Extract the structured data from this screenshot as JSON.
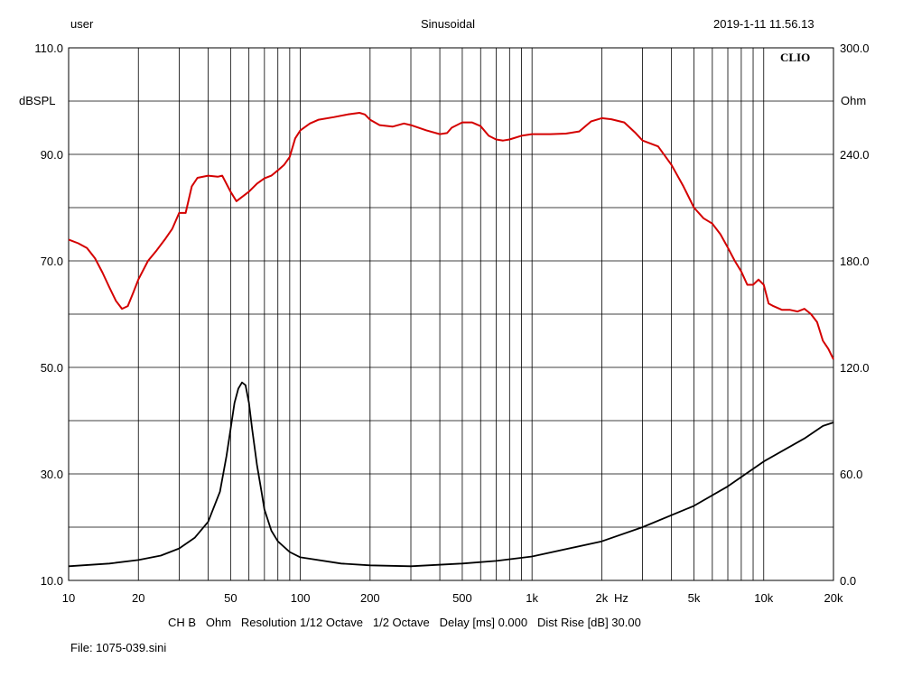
{
  "header": {
    "left": "user",
    "center": "Sinusoidal",
    "right": "2019-1-11 11.56.13"
  },
  "footer": {
    "settings": "CH B   Ohm   Resolution 1/12 Octave   1/2 Octave   Delay [ms] 0.000   Dist Rise [dB] 30.00",
    "file": "File: 1075-039.sini"
  },
  "chart_data": {
    "type": "line",
    "title": "Sinusoidal",
    "watermark": "CLIO",
    "xlabel": "Hz",
    "x_scale": "log",
    "xlim": [
      10,
      20000
    ],
    "x_tick_labels": [
      {
        "value": 10,
        "label": "10"
      },
      {
        "value": 20,
        "label": "20"
      },
      {
        "value": 50,
        "label": "50"
      },
      {
        "value": 100,
        "label": "100"
      },
      {
        "value": 200,
        "label": "200"
      },
      {
        "value": 500,
        "label": "500"
      },
      {
        "value": 1000,
        "label": "1k"
      },
      {
        "value": 2000,
        "label": "2k"
      },
      {
        "value": 5000,
        "label": "5k"
      },
      {
        "value": 10000,
        "label": "10k"
      },
      {
        "value": 20000,
        "label": "20k"
      }
    ],
    "y_left": {
      "label": "dBSPL",
      "lim": [
        10,
        110
      ],
      "tick_labels": [
        {
          "value": 110,
          "label": "110.0"
        },
        {
          "value": 90,
          "label": "90.0"
        },
        {
          "value": 70,
          "label": "70.0"
        },
        {
          "value": 50,
          "label": "50.0"
        },
        {
          "value": 30,
          "label": "30.0"
        },
        {
          "value": 10,
          "label": "10.0"
        }
      ]
    },
    "y_right": {
      "label": "Ohm",
      "lim": [
        0,
        300
      ],
      "tick_labels": [
        {
          "value": 300,
          "label": "300.0"
        },
        {
          "value": 240,
          "label": "240.0"
        },
        {
          "value": 180,
          "label": "180.0"
        },
        {
          "value": 120,
          "label": "120.0"
        },
        {
          "value": 60,
          "label": "60.0"
        },
        {
          "value": 0,
          "label": "0.0"
        }
      ]
    },
    "series": [
      {
        "name": "SPL (dBSPL)",
        "color": "#d40000",
        "axis": "left",
        "points": [
          [
            10,
            74.0
          ],
          [
            11,
            73.3
          ],
          [
            12,
            72.4
          ],
          [
            13,
            70.5
          ],
          [
            14,
            67.8
          ],
          [
            15,
            65.0
          ],
          [
            16,
            62.5
          ],
          [
            17,
            61.0
          ],
          [
            18,
            61.5
          ],
          [
            19,
            64.0
          ],
          [
            20,
            66.5
          ],
          [
            22,
            70.0
          ],
          [
            24,
            72.0
          ],
          [
            26,
            74.0
          ],
          [
            28,
            76.0
          ],
          [
            30,
            79.0
          ],
          [
            32,
            79.0
          ],
          [
            34,
            84.0
          ],
          [
            36,
            85.6
          ],
          [
            40,
            86.0
          ],
          [
            44,
            85.8
          ],
          [
            46,
            86.0
          ],
          [
            50,
            83.0
          ],
          [
            53,
            81.2
          ],
          [
            56,
            82.0
          ],
          [
            60,
            83.0
          ],
          [
            65,
            84.5
          ],
          [
            70,
            85.5
          ],
          [
            75,
            86.0
          ],
          [
            80,
            87.0
          ],
          [
            85,
            88.0
          ],
          [
            90,
            89.5
          ],
          [
            95,
            93.0
          ],
          [
            100,
            94.5
          ],
          [
            110,
            95.8
          ],
          [
            120,
            96.5
          ],
          [
            140,
            97.0
          ],
          [
            160,
            97.5
          ],
          [
            180,
            97.8
          ],
          [
            190,
            97.5
          ],
          [
            200,
            96.5
          ],
          [
            220,
            95.5
          ],
          [
            250,
            95.2
          ],
          [
            280,
            95.8
          ],
          [
            300,
            95.5
          ],
          [
            350,
            94.5
          ],
          [
            400,
            93.8
          ],
          [
            430,
            94.0
          ],
          [
            450,
            95.0
          ],
          [
            500,
            96.0
          ],
          [
            550,
            96.0
          ],
          [
            600,
            95.3
          ],
          [
            650,
            93.5
          ],
          [
            700,
            92.8
          ],
          [
            750,
            92.6
          ],
          [
            800,
            92.8
          ],
          [
            900,
            93.5
          ],
          [
            1000,
            93.8
          ],
          [
            1200,
            93.8
          ],
          [
            1400,
            93.9
          ],
          [
            1600,
            94.3
          ],
          [
            1800,
            96.2
          ],
          [
            2000,
            96.8
          ],
          [
            2200,
            96.6
          ],
          [
            2500,
            96.0
          ],
          [
            2800,
            94.0
          ],
          [
            3000,
            92.6
          ],
          [
            3500,
            91.5
          ],
          [
            4000,
            88.0
          ],
          [
            4500,
            84.0
          ],
          [
            5000,
            80.0
          ],
          [
            5500,
            78.0
          ],
          [
            6000,
            77.0
          ],
          [
            6500,
            75.0
          ],
          [
            7000,
            72.5
          ],
          [
            7500,
            70.0
          ],
          [
            8000,
            68.0
          ],
          [
            8500,
            65.5
          ],
          [
            9000,
            65.5
          ],
          [
            9500,
            66.5
          ],
          [
            10000,
            65.5
          ],
          [
            10500,
            62.0
          ],
          [
            11000,
            61.5
          ],
          [
            12000,
            60.8
          ],
          [
            13000,
            60.8
          ],
          [
            14000,
            60.5
          ],
          [
            15000,
            61.0
          ],
          [
            16000,
            60.0
          ],
          [
            17000,
            58.5
          ],
          [
            18000,
            55.0
          ],
          [
            19000,
            53.5
          ],
          [
            20000,
            51.5
          ]
        ]
      },
      {
        "name": "Impedance (Ohm)",
        "color": "#000000",
        "axis": "right",
        "points": [
          [
            10,
            8.0
          ],
          [
            15,
            9.5
          ],
          [
            20,
            11.5
          ],
          [
            25,
            14.0
          ],
          [
            30,
            18.0
          ],
          [
            35,
            24.0
          ],
          [
            40,
            33.0
          ],
          [
            45,
            50.0
          ],
          [
            48,
            70.0
          ],
          [
            50,
            85.0
          ],
          [
            52,
            100.0
          ],
          [
            54,
            108.0
          ],
          [
            56,
            111.5
          ],
          [
            58,
            110.0
          ],
          [
            60,
            100.0
          ],
          [
            62,
            85.0
          ],
          [
            65,
            65.0
          ],
          [
            68,
            50.0
          ],
          [
            70,
            40.0
          ],
          [
            75,
            28.0
          ],
          [
            80,
            22.0
          ],
          [
            90,
            16.0
          ],
          [
            100,
            13.0
          ],
          [
            150,
            9.5
          ],
          [
            200,
            8.5
          ],
          [
            300,
            8.0
          ],
          [
            500,
            9.5
          ],
          [
            700,
            11.0
          ],
          [
            1000,
            13.5
          ],
          [
            2000,
            22.0
          ],
          [
            3000,
            30.0
          ],
          [
            5000,
            42.0
          ],
          [
            7000,
            53.0
          ],
          [
            10000,
            67.0
          ],
          [
            15000,
            80.0
          ],
          [
            18000,
            87.0
          ],
          [
            20000,
            89.0
          ]
        ]
      }
    ]
  }
}
